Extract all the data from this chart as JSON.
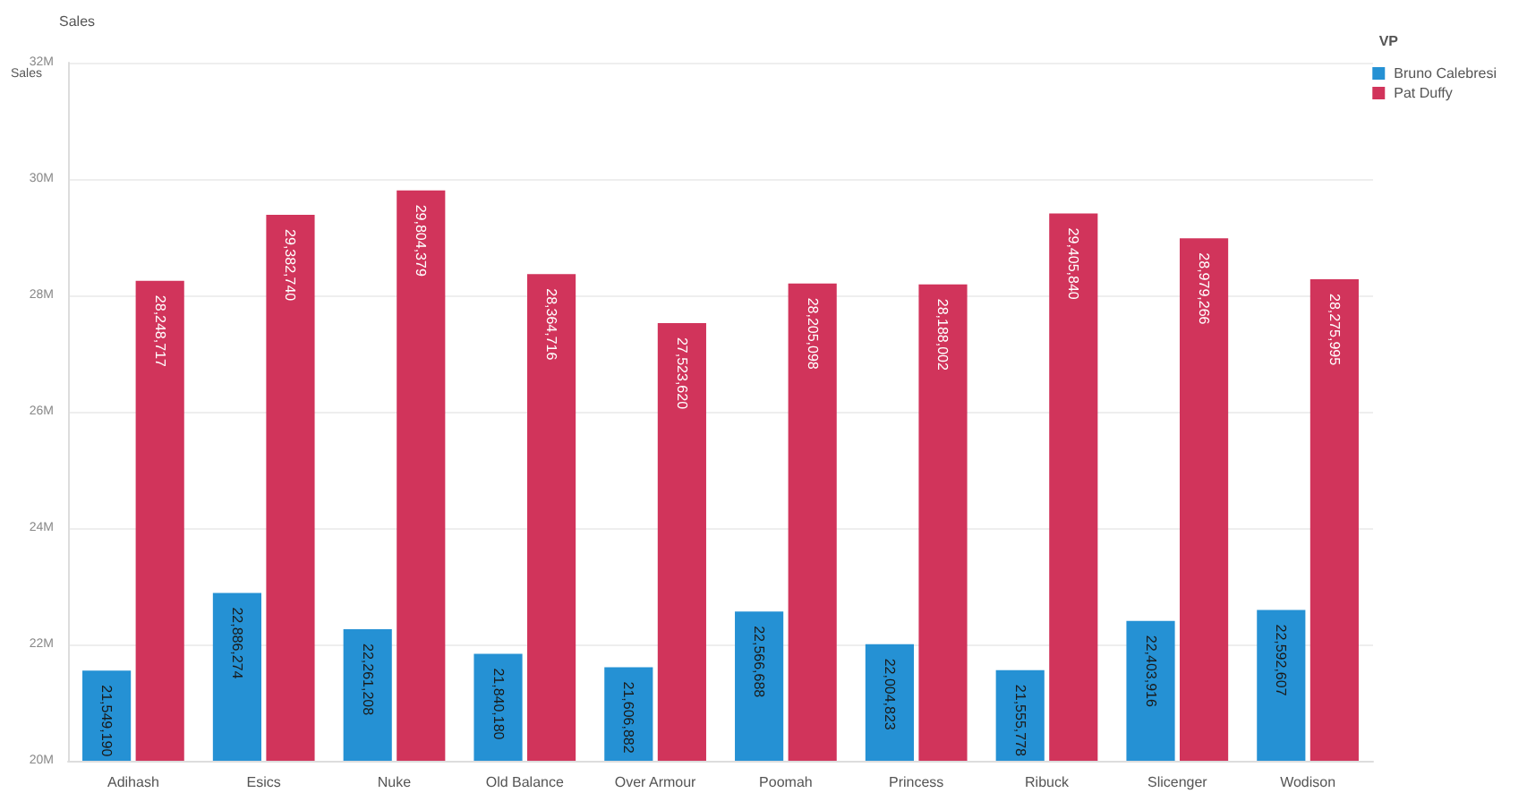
{
  "chart_data": {
    "type": "bar",
    "title": "Sales",
    "ylabel": "Sales",
    "legend_title": "VP",
    "categories": [
      "Adihash",
      "Esics",
      "Nuke",
      "Old Balance",
      "Over Armour",
      "Poomah",
      "Princess",
      "Ribuck",
      "Slicenger",
      "Wodison"
    ],
    "series": [
      {
        "name": "Bruno Calebresi",
        "color": "#2591d4",
        "values": [
          21549190,
          22886274,
          22261208,
          21840180,
          21606882,
          22566688,
          22004823,
          21555778,
          22403916,
          22592607
        ],
        "value_labels": [
          "21,549,190",
          "22,886,274",
          "22,261,208",
          "21,840,180",
          "21,606,882",
          "22,566,688",
          "22,004,823",
          "21,555,778",
          "22,403,916",
          "22,592,607"
        ]
      },
      {
        "name": "Pat Duffy",
        "color": "#d1345b",
        "values": [
          28248717,
          29382740,
          29804379,
          28364716,
          27523620,
          28205098,
          28188002,
          29405840,
          28979266,
          28275995
        ],
        "value_labels": [
          "28,248,717",
          "29,382,740",
          "29,804,379",
          "28,364,716",
          "27,523,620",
          "28,205,098",
          "28,188,002",
          "29,405,840",
          "28,979,266",
          "28,275,995"
        ]
      }
    ],
    "ylim": [
      20000000,
      32000000
    ],
    "yticks": [
      {
        "value": 20000000,
        "label": "20M"
      },
      {
        "value": 22000000,
        "label": "22M"
      },
      {
        "value": 24000000,
        "label": "24M"
      },
      {
        "value": 26000000,
        "label": "26M"
      },
      {
        "value": 28000000,
        "label": "28M"
      },
      {
        "value": 30000000,
        "label": "30M"
      },
      {
        "value": 32000000,
        "label": "32M"
      }
    ],
    "grid": "y",
    "legend": "top right"
  }
}
